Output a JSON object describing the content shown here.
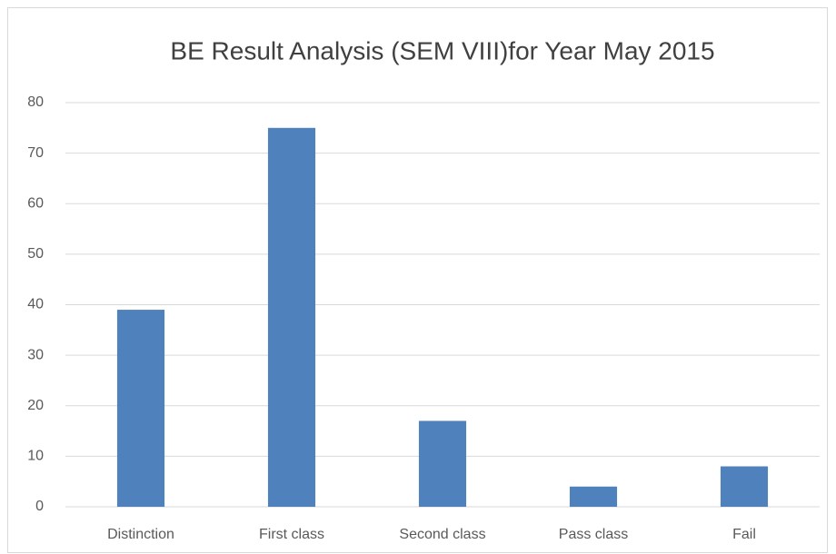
{
  "chart_data": {
    "type": "bar",
    "title": "BE Result Analysis (SEM VIII)for Year May 2015",
    "categories": [
      "Distinction",
      "First class",
      "Second class",
      "Pass class",
      "Fail"
    ],
    "values": [
      39,
      75,
      17,
      4,
      8
    ],
    "color": "#4f81bd",
    "ylim": [
      0,
      80
    ],
    "yticks": [
      0,
      10,
      20,
      30,
      40,
      50,
      60,
      70,
      80
    ],
    "grid": true
  }
}
